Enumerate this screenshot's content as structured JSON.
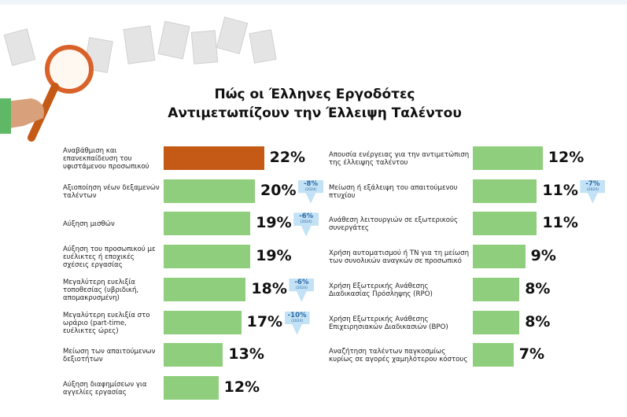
{
  "title": [
    "Πώς οι Έλληνες Εργοδότες",
    "Αντιμετωπίζουν την Έλλειψη Ταλέντου"
  ],
  "chart_data": [
    {
      "type": "hbar",
      "categories": [
        "Αναβάθμιση και επανεκπαίδευση του υφιστάμενου προσωπικού",
        "Αξιοποίηση νέων δεξαμενών ταλέντων",
        "Αύξηση μισθών",
        "Αύξηση του προσωπικού με ευέλικτες ή εποχικές σχέσεις εργασίας",
        "Μεγαλύτερη ευελιξία τοποθεσίας (υβριδική, απομακρυσμένη)",
        "Μεγαλύτερη ευελιξία στο ωράριο (part-time, ευέλικτες ώρες)",
        "Μείωση των απαιτούμενων δεξιοτήτων",
        "Αύξηση διαφημίσεων για αγγελίες εργασίας"
      ],
      "values": [
        22,
        20,
        19,
        19,
        18,
        17,
        13,
        12
      ],
      "value_labels": [
        "22%",
        "20%",
        "19%",
        "19%",
        "18%",
        "17%",
        "13%",
        "12%"
      ],
      "colors": [
        "#c55a16",
        "#8fce7c",
        "#8fce7c",
        "#8fce7c",
        "#8fce7c",
        "#8fce7c",
        "#8fce7c",
        "#8fce7c"
      ],
      "changes": [
        null,
        -8,
        -6,
        null,
        -6,
        -10,
        null,
        null
      ],
      "change_labels": [
        null,
        "-8%",
        "-6%",
        null,
        "-6%",
        "-10%",
        null,
        null
      ],
      "change_notes": [
        null,
        "(2024)",
        "(2024)",
        null,
        "(2024)",
        "(2024)",
        null,
        null
      ]
    },
    {
      "type": "hbar",
      "categories": [
        "Απουσία ενέργειας για την αντιμετώπιση της έλλειψης ταλέντου",
        "Μείωση ή εξάλειψη του απαιτούμενου πτυχίου",
        "Ανάθεση λειτουργιών σε εξωτερικούς συνεργάτες",
        "Χρήση αυτοματισμού ή ΤΝ για τη μείωση των συνολικών αναγκών σε προσωπικό",
        "Χρήση Εξωτερικής Ανάθεσης Διαδικασίας Πρόσληψης (RPO)",
        "Χρήση Εξωτερικής Ανάθεσης Επιχειρησιακών Διαδικασιών (BPO)",
        "Αναζήτηση ταλέντων παγκοσμίως κυρίως σε αγορές χαμηλότερου κόστους"
      ],
      "values": [
        12,
        11,
        11,
        9,
        8,
        8,
        7
      ],
      "value_labels": [
        "12%",
        "11%",
        "11%",
        "9%",
        "8%",
        "8%",
        "7%"
      ],
      "colors": [
        "#8fce7c",
        "#8fce7c",
        "#8fce7c",
        "#8fce7c",
        "#8fce7c",
        "#8fce7c",
        "#8fce7c"
      ],
      "changes": [
        null,
        -7,
        null,
        null,
        null,
        null,
        null
      ],
      "change_labels": [
        null,
        "-7%",
        null,
        null,
        null,
        null,
        null
      ],
      "change_notes": [
        null,
        "(2024)",
        null,
        null,
        null,
        null,
        null
      ]
    }
  ]
}
